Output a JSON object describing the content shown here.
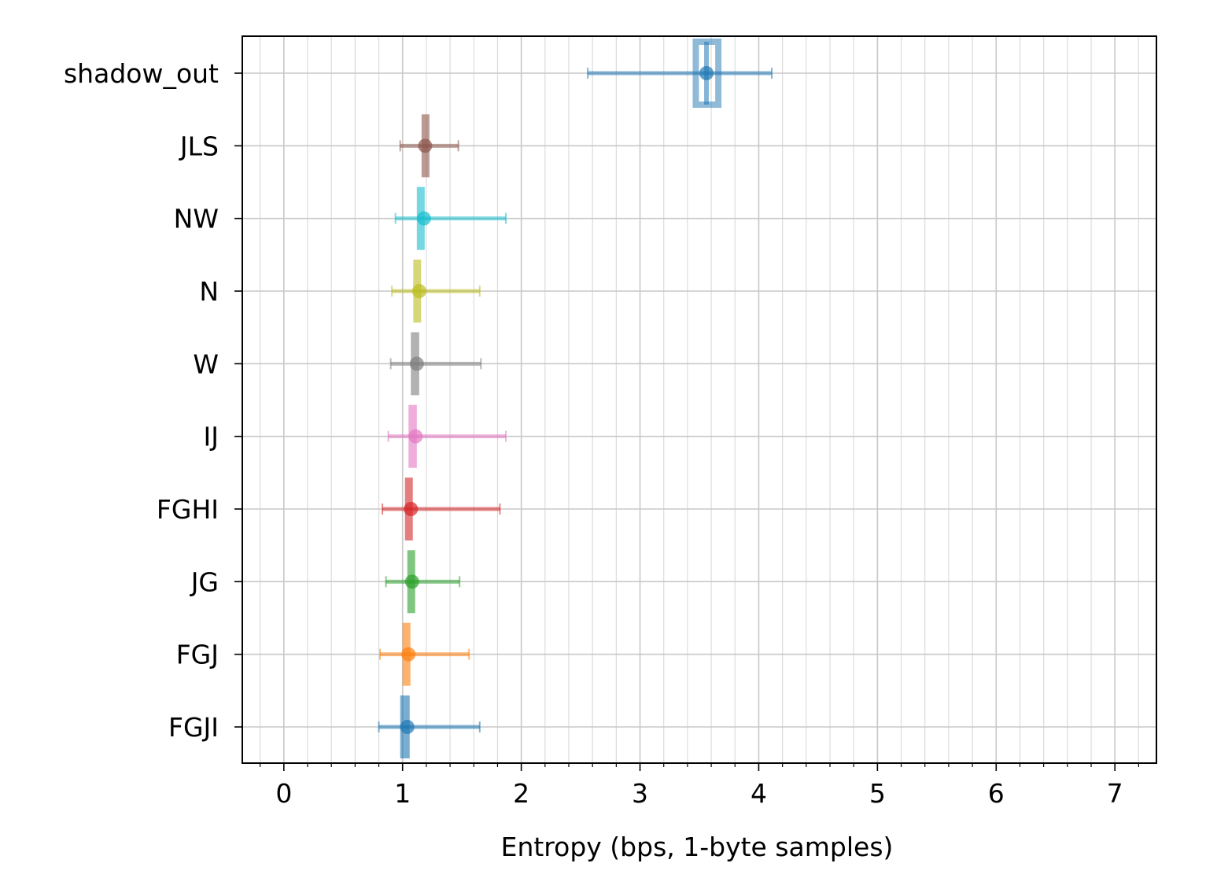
{
  "chart_data": {
    "type": "scatter",
    "title": "",
    "xlabel": "Entropy (bps, 1-byte samples)",
    "ylabel": "",
    "xlim": [
      -0.35,
      7.35
    ],
    "xticks": [
      "0",
      "1",
      "2",
      "3",
      "4",
      "5",
      "6",
      "7"
    ],
    "grid": "major and minor, both axes",
    "categories": [
      "shadow_out",
      "JLS",
      "NW",
      "N",
      "W",
      "IJ",
      "FGHI",
      "JG",
      "FGJ",
      "FGJI"
    ],
    "series": [
      {
        "category": "shadow_out",
        "color": "#1f77b4",
        "value": 3.56,
        "err_low": 2.56,
        "err_high": 4.11,
        "box_low": 3.47,
        "box_high": 3.66,
        "marker": "hollow-box"
      },
      {
        "category": "JLS",
        "color": "#8c564b",
        "value": 1.19,
        "err_low": 0.98,
        "err_high": 1.47,
        "box_low": 1.16,
        "box_high": 1.22
      },
      {
        "category": "NW",
        "color": "#17becf",
        "value": 1.18,
        "err_low": 0.94,
        "err_high": 1.87,
        "box_low": 1.12,
        "box_high": 1.18
      },
      {
        "category": "N",
        "color": "#bcbd22",
        "value": 1.14,
        "err_low": 0.91,
        "err_high": 1.65,
        "box_low": 1.09,
        "box_high": 1.15
      },
      {
        "category": "W",
        "color": "#7f7f7f",
        "value": 1.12,
        "err_low": 0.9,
        "err_high": 1.66,
        "box_low": 1.07,
        "box_high": 1.14
      },
      {
        "category": "IJ",
        "color": "#e377c2",
        "value": 1.11,
        "err_low": 0.88,
        "err_high": 1.87,
        "box_low": 1.05,
        "box_high": 1.12
      },
      {
        "category": "FGHI",
        "color": "#d62728",
        "value": 1.07,
        "err_low": 0.83,
        "err_high": 1.82,
        "box_low": 1.02,
        "box_high": 1.08
      },
      {
        "category": "JG",
        "color": "#2ca02c",
        "value": 1.08,
        "err_low": 0.86,
        "err_high": 1.48,
        "box_low": 1.04,
        "box_high": 1.1
      },
      {
        "category": "FGJ",
        "color": "#ff7f0e",
        "value": 1.05,
        "err_low": 0.81,
        "err_high": 1.56,
        "box_low": 1.0,
        "box_high": 1.06
      },
      {
        "category": "FGJI",
        "color": "#1f77b4",
        "value": 1.04,
        "err_low": 0.8,
        "err_high": 1.65,
        "box_low": 0.98,
        "box_high": 1.06
      }
    ]
  }
}
